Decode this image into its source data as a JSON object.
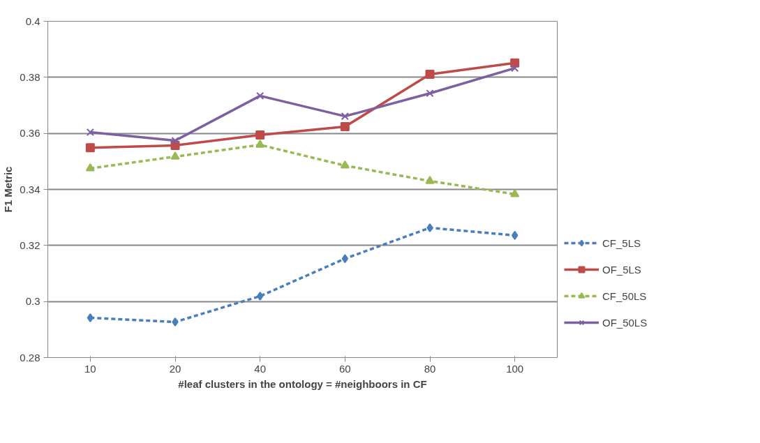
{
  "chart_data": {
    "type": "line",
    "xlabel": "#leaf clusters in the ontology = #neighboors in CF",
    "ylabel": "F1 Metric",
    "categories": [
      "10",
      "20",
      "40",
      "60",
      "80",
      "100"
    ],
    "series": [
      {
        "name": "CF_5LS",
        "color": "#4a7ebb",
        "marker": "diamond",
        "line_style": "dashed",
        "values": [
          0.2942,
          0.2927,
          0.3019,
          0.3153,
          0.3263,
          0.3236
        ]
      },
      {
        "name": "OF_5LS",
        "color": "#be4b48",
        "marker": "square",
        "line_style": "solid",
        "values": [
          0.3549,
          0.3557,
          0.3594,
          0.3624,
          0.3811,
          0.3851
        ]
      },
      {
        "name": "CF_50LS",
        "color": "#98b954",
        "marker": "triangle",
        "line_style": "dashed",
        "values": [
          0.3475,
          0.3517,
          0.3559,
          0.3485,
          0.343,
          0.3383
        ]
      },
      {
        "name": "OF_50LS",
        "color": "#7d60a0",
        "marker": "cross",
        "line_style": "solid",
        "values": [
          0.3604,
          0.3574,
          0.3734,
          0.3661,
          0.3743,
          0.3833
        ]
      }
    ],
    "ylim": [
      0.28,
      0.4
    ],
    "yticks": [
      0.28,
      0.3,
      0.32,
      0.34,
      0.36,
      0.38,
      0.4
    ],
    "grid": "y",
    "legend": "right"
  }
}
